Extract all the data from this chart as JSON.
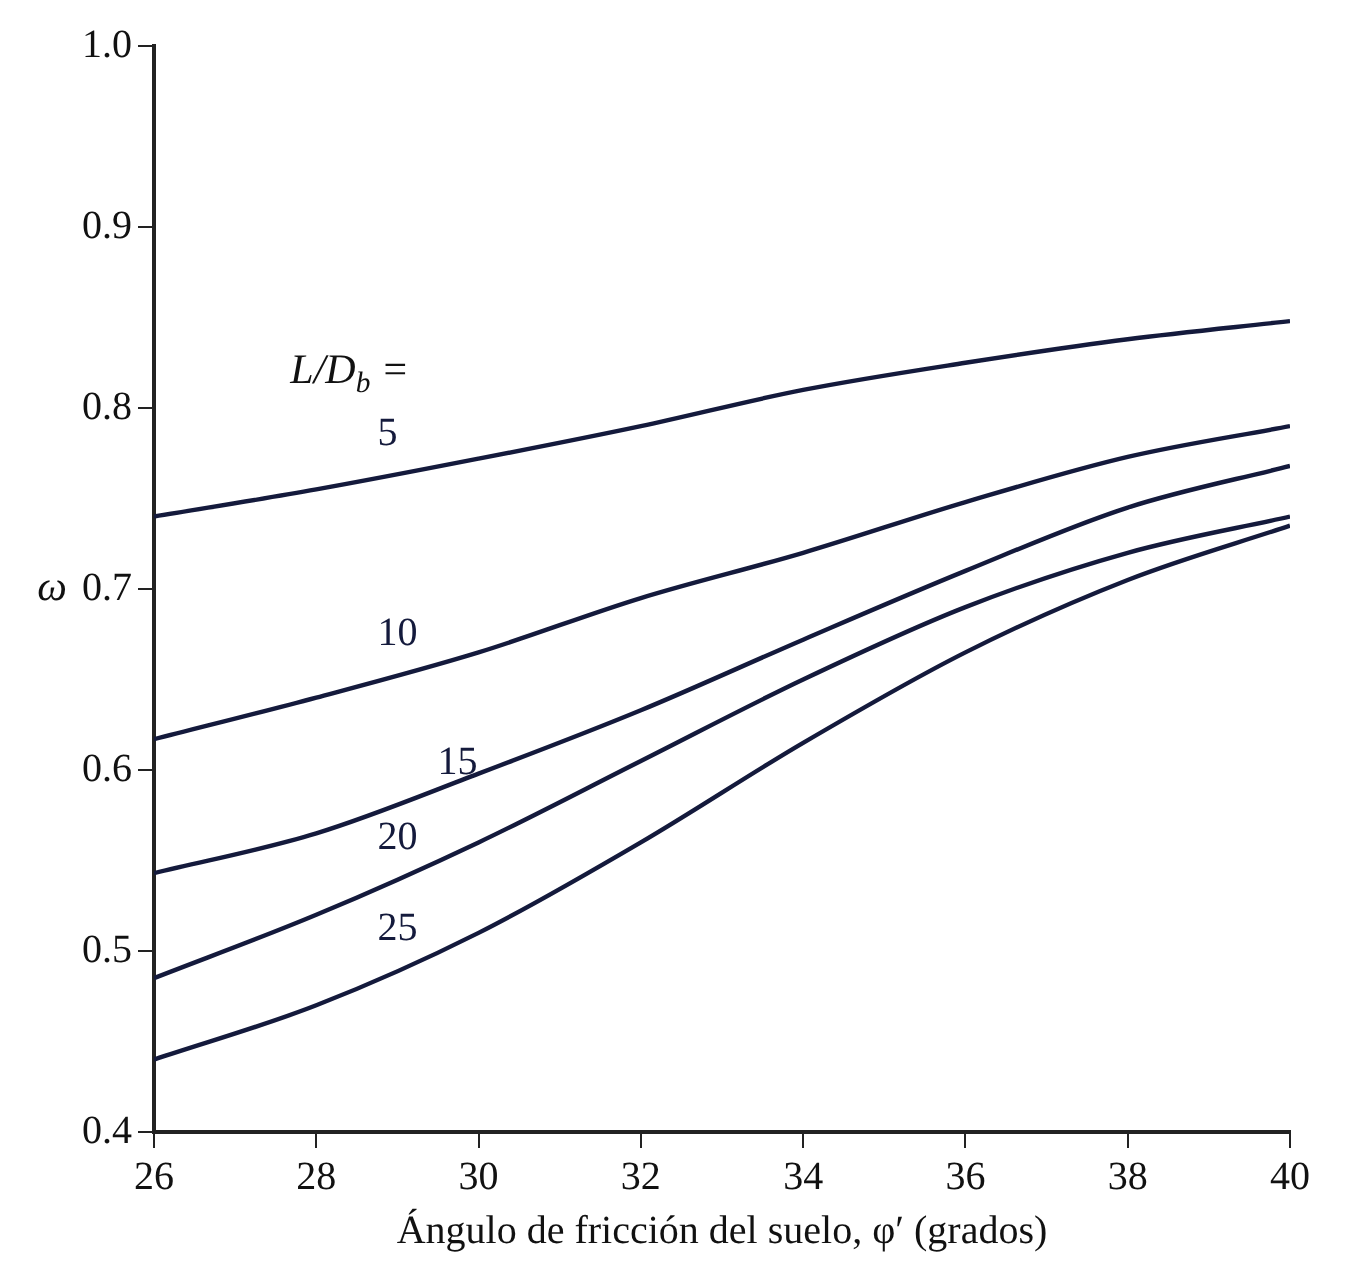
{
  "chart_data": {
    "type": "line",
    "xlabel": "Ángulo de fricción del suelo, φ′ (grados)",
    "ylabel": "ω",
    "legend_title": "L/D$_{b}$ =",
    "x": [
      26,
      28,
      30,
      32,
      34,
      36,
      38,
      40
    ],
    "series": [
      {
        "name": "5",
        "color": "#141a3c",
        "values": [
          0.74,
          0.755,
          0.772,
          0.79,
          0.81,
          0.825,
          0.838,
          0.848
        ]
      },
      {
        "name": "10",
        "color": "#141a3c",
        "values": [
          0.617,
          0.64,
          0.665,
          0.695,
          0.72,
          0.748,
          0.773,
          0.79
        ]
      },
      {
        "name": "15",
        "color": "#141a3c",
        "values": [
          0.543,
          0.565,
          0.598,
          0.633,
          0.672,
          0.71,
          0.745,
          0.768
        ]
      },
      {
        "name": "20",
        "color": "#141a3c",
        "values": [
          0.485,
          0.52,
          0.56,
          0.605,
          0.65,
          0.69,
          0.72,
          0.74
        ]
      },
      {
        "name": "25",
        "color": "#141a3c",
        "values": [
          0.44,
          0.47,
          0.51,
          0.56,
          0.615,
          0.665,
          0.705,
          0.735
        ]
      }
    ],
    "xlim": [
      26,
      40
    ],
    "xticks": [
      26,
      28,
      30,
      32,
      34,
      36,
      38,
      40
    ],
    "ylim": [
      0.4,
      1.0
    ],
    "yticks": [
      {
        "value": 0.4,
        "label": "0.4"
      },
      {
        "value": 0.5,
        "label": "0.5"
      },
      {
        "value": 0.6,
        "label": "0.6"
      },
      {
        "value": 0.7,
        "label": "0.7"
      },
      {
        "value": 0.8,
        "label": "0.8"
      },
      {
        "value": 0.9,
        "label": "0.9"
      },
      {
        "value": 1.0,
        "label": "1.0"
      }
    ],
    "grid": false,
    "legend": false,
    "marker": "none",
    "line_style": "solid"
  }
}
